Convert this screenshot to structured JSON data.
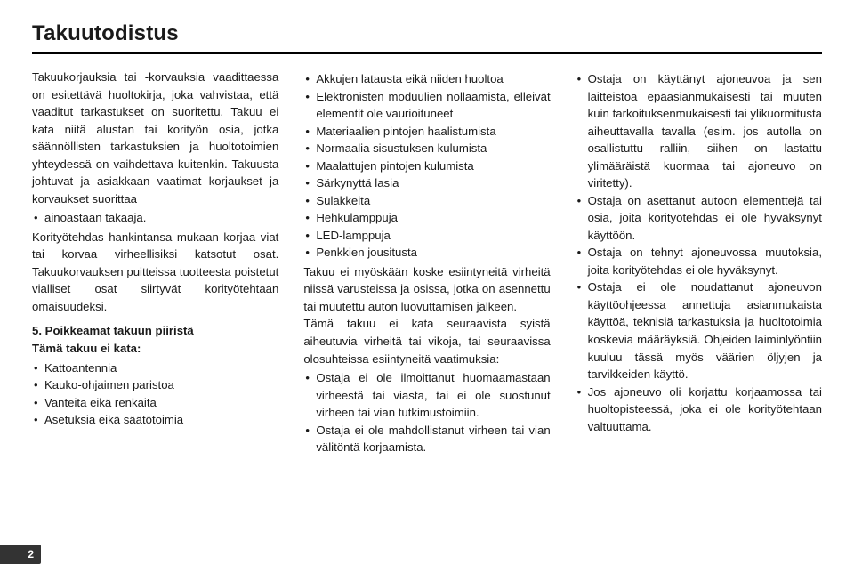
{
  "title": "Takuutodistus",
  "page_number": "2",
  "col1": {
    "p1a": "Takuukorjauksia tai -korvauksia vaadittaessa on esitettävä huoltokirja, joka vahvistaa, että vaaditut tarkastukset on suoritettu.",
    "p1b": "Takuu ei kata niitä alustan tai korityön osia, jotka säännöllisten tarkastuksien ja huoltotoimien yhteydessä on vaihdettava kuitenkin. Takuusta johtuvat ja asiakkaan vaatimat korjaukset ja korvaukset suorittaa",
    "b1": "ainoastaan takaaja.",
    "p2": "Korityötehdas hankintansa mukaan korjaa viat tai korvaa virheellisiksi katsotut osat. Takuukorvauksen puitteissa tuotteesta poistetut vialliset osat siirtyvät korityötehtaan omaisuudeksi.",
    "h5": "5. Poikkeamat takuun piiristä",
    "p3": "Tämä takuu ei kata:",
    "list2": [
      "Kattoantennia",
      "Kauko-ohjaimen paristoa",
      "Vanteita eikä renkaita",
      "Asetuksia eikä säätötoimia"
    ]
  },
  "col2": {
    "list1": [
      "Akkujen latausta eikä niiden huoltoa",
      "Elektronisten moduulien nollaamista, elleivät elementit ole vaurioituneet",
      "Materiaalien pintojen haalistumista",
      "Normaalia sisustuksen kulumista",
      "Maalattujen pintojen kulumista",
      "Särkynyttä lasia",
      "Sulakkeita",
      "Hehkulamppuja",
      "LED-lamppuja",
      "Penkkien jousitusta"
    ],
    "p1": "Takuu ei myöskään koske esiintyneitä virheitä niissä varusteissa ja osissa, jotka on asennettu tai muutettu auton luovuttamisen jälkeen.",
    "p2": "Tämä takuu ei kata seuraavista syistä aiheutuvia virheitä tai vikoja, tai seuraavissa olosuhteissa esiintyneitä vaatimuksia:",
    "list2": [
      "Ostaja ei ole ilmoittanut huomaamastaan virheestä tai viasta, tai ei ole suostunut virheen tai vian tutkimustoimiin.",
      "Ostaja ei ole mahdollistanut virheen tai vian välitöntä korjaamista."
    ]
  },
  "col3": {
    "list1": [
      "Ostaja on käyttänyt ajoneuvoa ja sen laitteistoa epäasianmukaisesti tai muuten kuin tarkoituksenmukaisesti tai ylikuormitusta aiheuttavalla tavalla (esim. jos autolla on osallistuttu ralliin, siihen on lastattu ylimääräistä kuormaa tai ajoneuvo on viritetty).",
      "Ostaja on asettanut autoon elementtejä tai osia, joita korityötehdas ei ole hyväksynyt käyttöön.",
      "Ostaja on tehnyt ajoneuvossa muutoksia, joita korityötehdas ei ole hyväksynyt.",
      "Ostaja ei ole noudattanut ajoneuvon käyttöohjeessa annettuja asianmukaista käyttöä, teknisiä tarkastuksia ja huoltotoimia koskevia määräyksiä. Ohjeiden laiminlyöntiin kuuluu tässä myös väärien öljyjen ja tarvikkeiden käyttö.",
      "Jos ajoneuvo oli korjattu korjaamossa tai huoltopisteessä, joka ei ole korityötehtaan valtuuttama."
    ]
  }
}
